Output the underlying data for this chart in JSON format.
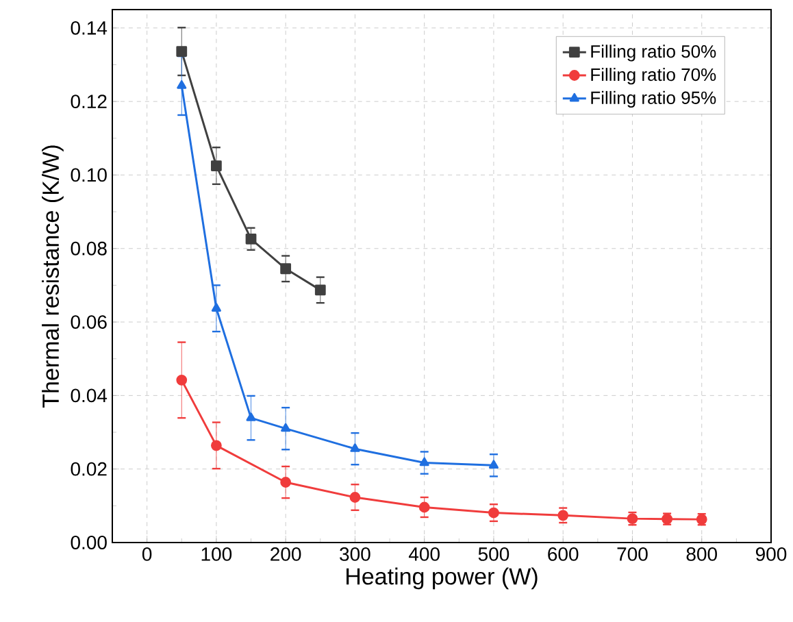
{
  "chart_data": {
    "type": "line",
    "xlabel": "Heating power (W)",
    "ylabel": "Thermal resistance (K/W)",
    "xlim": [
      -50,
      900
    ],
    "xticks": [
      0,
      100,
      200,
      300,
      400,
      500,
      600,
      700,
      800,
      900
    ],
    "ylim": [
      0,
      0.145
    ],
    "yticks": [
      {
        "value": 0,
        "label": "0.00"
      },
      {
        "value": 0.02,
        "label": "0.02"
      },
      {
        "value": 0.04,
        "label": "0.04"
      },
      {
        "value": 0.06,
        "label": "0.06"
      },
      {
        "value": 0.08,
        "label": "0.08"
      },
      {
        "value": 0.1,
        "label": "0.10"
      },
      {
        "value": 0.12,
        "label": "0.12"
      },
      {
        "value": 0.14,
        "label": "0.14"
      }
    ],
    "grid": true,
    "legend": "top right",
    "line_style": "solid",
    "series": [
      {
        "name": "Filling ratio 50%",
        "color": "#404040",
        "marker": "square",
        "x": [
          50,
          100,
          150,
          200,
          250
        ],
        "values": [
          0.1336,
          0.1025,
          0.0826,
          0.0745,
          0.0687
        ],
        "errors": [
          0.0065,
          0.005,
          0.003,
          0.0035,
          0.0035
        ]
      },
      {
        "name": "Filling ratio 70%",
        "color": "#f03c3c",
        "marker": "circle",
        "x": [
          50,
          100,
          200,
          300,
          400,
          500,
          600,
          700,
          750,
          800
        ],
        "values": [
          0.0442,
          0.0264,
          0.0164,
          0.0123,
          0.0096,
          0.0081,
          0.0074,
          0.0065,
          0.0064,
          0.0063
        ],
        "errors": [
          0.0103,
          0.0063,
          0.0043,
          0.0035,
          0.0027,
          0.0023,
          0.002,
          0.0017,
          0.0015,
          0.0015
        ]
      },
      {
        "name": "Filling ratio 95%",
        "color": "#1f6fe0",
        "marker": "triangle",
        "x": [
          50,
          100,
          150,
          200,
          300,
          400,
          500
        ],
        "values": [
          0.1243,
          0.0637,
          0.0339,
          0.031,
          0.0255,
          0.0217,
          0.021
        ],
        "errors": [
          0.008,
          0.0063,
          0.006,
          0.0057,
          0.0043,
          0.003,
          0.003
        ]
      }
    ]
  }
}
